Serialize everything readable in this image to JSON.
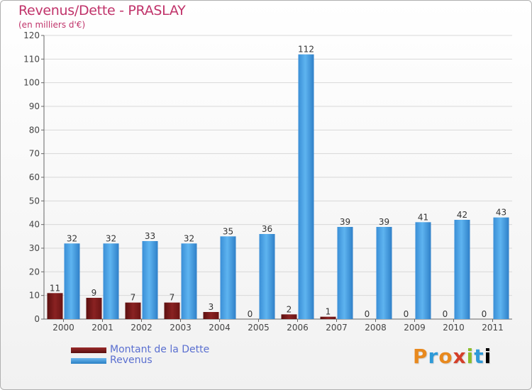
{
  "chart_data": {
    "type": "bar",
    "title": "Revenus/Dette - PRASLAY",
    "subtitle": "(en milliers d'€)",
    "xlabel": "",
    "ylabel": "",
    "ylim": [
      0,
      120
    ],
    "yticks": [
      0,
      10,
      20,
      30,
      40,
      50,
      60,
      70,
      80,
      90,
      100,
      110,
      120
    ],
    "grid": true,
    "legend_position": "bottom-left",
    "categories": [
      "2000",
      "2001",
      "2002",
      "2003",
      "2004",
      "2005",
      "2006",
      "2007",
      "2008",
      "2009",
      "2010",
      "2011"
    ],
    "series": [
      {
        "name": "Montant de la Dette",
        "color": "#7a1a1a",
        "values": [
          11,
          9,
          7,
          7,
          3,
          0,
          2,
          1,
          0,
          0,
          0,
          0
        ]
      },
      {
        "name": "Revenus",
        "color": "#4aa3e6",
        "values": [
          32,
          32,
          33,
          32,
          35,
          36,
          112,
          39,
          39,
          41,
          42,
          43
        ]
      }
    ]
  },
  "legend": {
    "debt_label": "Montant de la Dette",
    "revenue_label": "Revenus"
  },
  "logo": {
    "letters": [
      "P",
      "r",
      "o",
      "x",
      "i",
      "t",
      "i"
    ]
  }
}
